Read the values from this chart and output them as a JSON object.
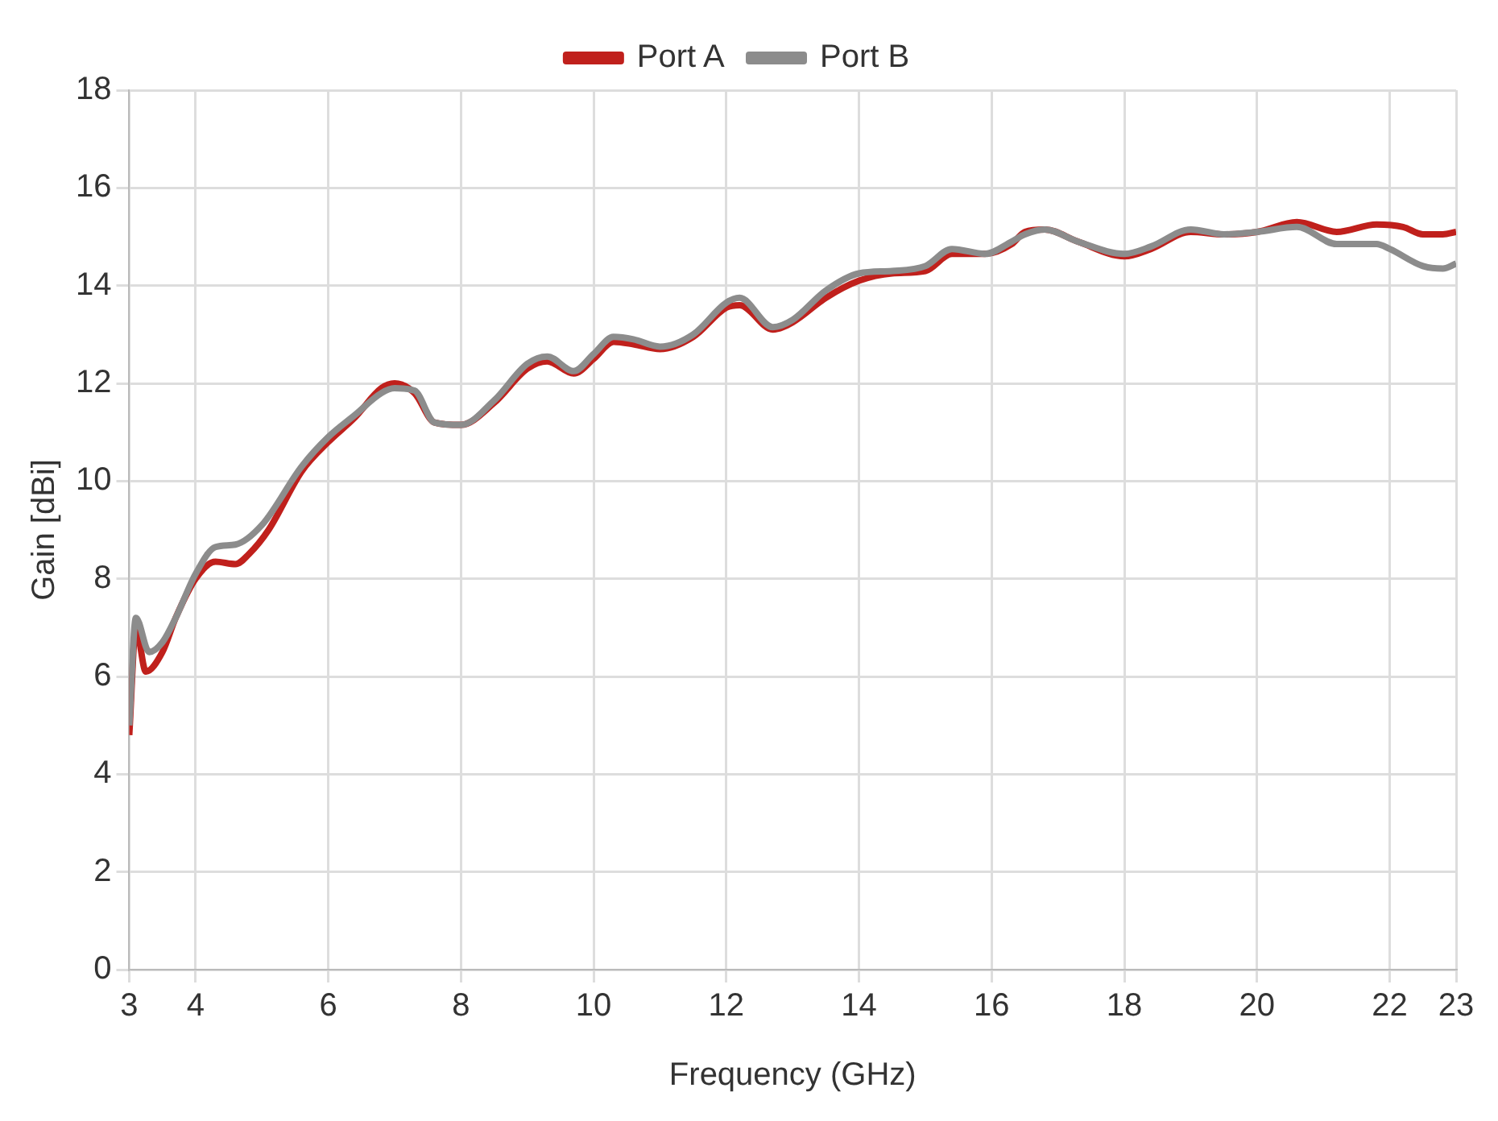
{
  "chart_data": {
    "type": "line",
    "xlabel": "Frequency (GHz)",
    "ylabel": "Gain [dBi]",
    "xlim": [
      3,
      23
    ],
    "xticks": [
      3,
      4,
      6,
      8,
      10,
      12,
      14,
      16,
      18,
      20,
      22,
      23
    ],
    "ylim": [
      0,
      18
    ],
    "yticks": [
      0,
      2,
      4,
      6,
      8,
      10,
      12,
      14,
      16,
      18
    ],
    "grid": true,
    "legend": "top",
    "marker": "none",
    "line_style": "solid",
    "series": [
      {
        "name": "Port A",
        "color": "#c0201c",
        "x": [
          3.0,
          3.1,
          3.25,
          3.5,
          3.7,
          4.0,
          4.3,
          4.6,
          4.8,
          5.1,
          5.6,
          6.0,
          6.4,
          6.8,
          7.0,
          7.3,
          7.6,
          8.0,
          8.5,
          9.0,
          9.3,
          9.7,
          10.0,
          10.3,
          10.6,
          11.0,
          11.5,
          12.0,
          12.2,
          12.7,
          13.0,
          13.5,
          14.0,
          14.5,
          15.0,
          15.4,
          15.9,
          16.3,
          16.5,
          16.8,
          17.3,
          18.0,
          18.4,
          19.0,
          19.5,
          20.0,
          20.6,
          21.2,
          21.8,
          22.2,
          22.5,
          22.8,
          23.0
        ],
        "values": [
          4.8,
          7.0,
          6.1,
          6.5,
          7.2,
          8.0,
          8.35,
          8.3,
          8.5,
          9.0,
          10.2,
          10.8,
          11.3,
          11.9,
          12.0,
          11.8,
          11.2,
          11.15,
          11.6,
          12.3,
          12.45,
          12.2,
          12.5,
          12.85,
          12.8,
          12.7,
          12.95,
          13.55,
          13.6,
          13.1,
          13.25,
          13.75,
          14.1,
          14.25,
          14.3,
          14.65,
          14.65,
          14.85,
          15.1,
          15.15,
          14.9,
          14.6,
          14.75,
          15.1,
          15.05,
          15.1,
          15.3,
          15.1,
          15.25,
          15.2,
          15.05,
          15.05,
          15.1
        ]
      },
      {
        "name": "Port B",
        "color": "#8c8c8c",
        "x": [
          3.0,
          3.1,
          3.3,
          3.5,
          3.7,
          4.0,
          4.3,
          4.6,
          5.0,
          5.6,
          6.0,
          6.4,
          6.8,
          7.0,
          7.3,
          7.6,
          8.0,
          8.5,
          9.0,
          9.3,
          9.7,
          10.0,
          10.3,
          10.6,
          11.0,
          11.5,
          12.0,
          12.2,
          12.7,
          13.0,
          13.5,
          14.0,
          14.5,
          15.0,
          15.4,
          15.9,
          16.3,
          16.5,
          16.8,
          17.3,
          18.0,
          18.4,
          19.0,
          19.5,
          20.0,
          20.6,
          21.2,
          21.8,
          22.0,
          22.5,
          22.8,
          23.0
        ],
        "values": [
          5.0,
          7.2,
          6.5,
          6.7,
          7.2,
          8.1,
          8.65,
          8.7,
          9.1,
          10.3,
          10.9,
          11.35,
          11.8,
          11.9,
          11.85,
          11.2,
          11.15,
          11.65,
          12.4,
          12.55,
          12.25,
          12.6,
          12.95,
          12.9,
          12.75,
          13.0,
          13.65,
          13.75,
          13.15,
          13.3,
          13.9,
          14.25,
          14.3,
          14.4,
          14.75,
          14.65,
          14.9,
          15.05,
          15.15,
          14.9,
          14.65,
          14.8,
          15.15,
          15.05,
          15.1,
          15.2,
          14.85,
          14.85,
          14.75,
          14.4,
          14.35,
          14.45
        ]
      }
    ]
  }
}
